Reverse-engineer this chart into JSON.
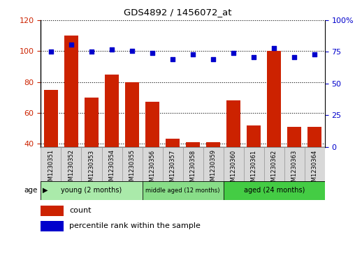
{
  "title": "GDS4892 / 1456072_at",
  "samples": [
    "GSM1230351",
    "GSM1230352",
    "GSM1230353",
    "GSM1230354",
    "GSM1230355",
    "GSM1230356",
    "GSM1230357",
    "GSM1230358",
    "GSM1230359",
    "GSM1230360",
    "GSM1230361",
    "GSM1230362",
    "GSM1230363",
    "GSM1230364"
  ],
  "counts": [
    75,
    110,
    70,
    85,
    80,
    67,
    43,
    41,
    41,
    68,
    52,
    100,
    51,
    51
  ],
  "percentile": [
    75,
    81,
    75,
    77,
    76,
    74,
    69,
    73,
    69,
    74,
    71,
    78,
    71,
    73
  ],
  "ylim_left": [
    38,
    120
  ],
  "ylim_right": [
    0,
    100
  ],
  "yticks_left": [
    40,
    60,
    80,
    100,
    120
  ],
  "yticks_right": [
    0,
    25,
    50,
    75,
    100
  ],
  "ytick_labels_right": [
    "0",
    "25",
    "50",
    "75",
    "100%"
  ],
  "bar_color": "#cc2200",
  "dot_color": "#0000cc",
  "groups": [
    {
      "label": "young (2 months)",
      "start": 0,
      "end": 5,
      "color": "#aaeaaa"
    },
    {
      "label": "middle aged (12 months)",
      "start": 5,
      "end": 9,
      "color": "#88dd88"
    },
    {
      "label": "aged (24 months)",
      "start": 9,
      "end": 14,
      "color": "#44cc44"
    }
  ],
  "age_label": "age",
  "legend_count_label": "count",
  "legend_pct_label": "percentile rank within the sample",
  "grid_color": "#000000",
  "tick_label_color_left": "#cc2200",
  "tick_label_color_right": "#0000cc",
  "xtick_box_color": "#d8d8d8",
  "xtick_box_edge": "#999999"
}
